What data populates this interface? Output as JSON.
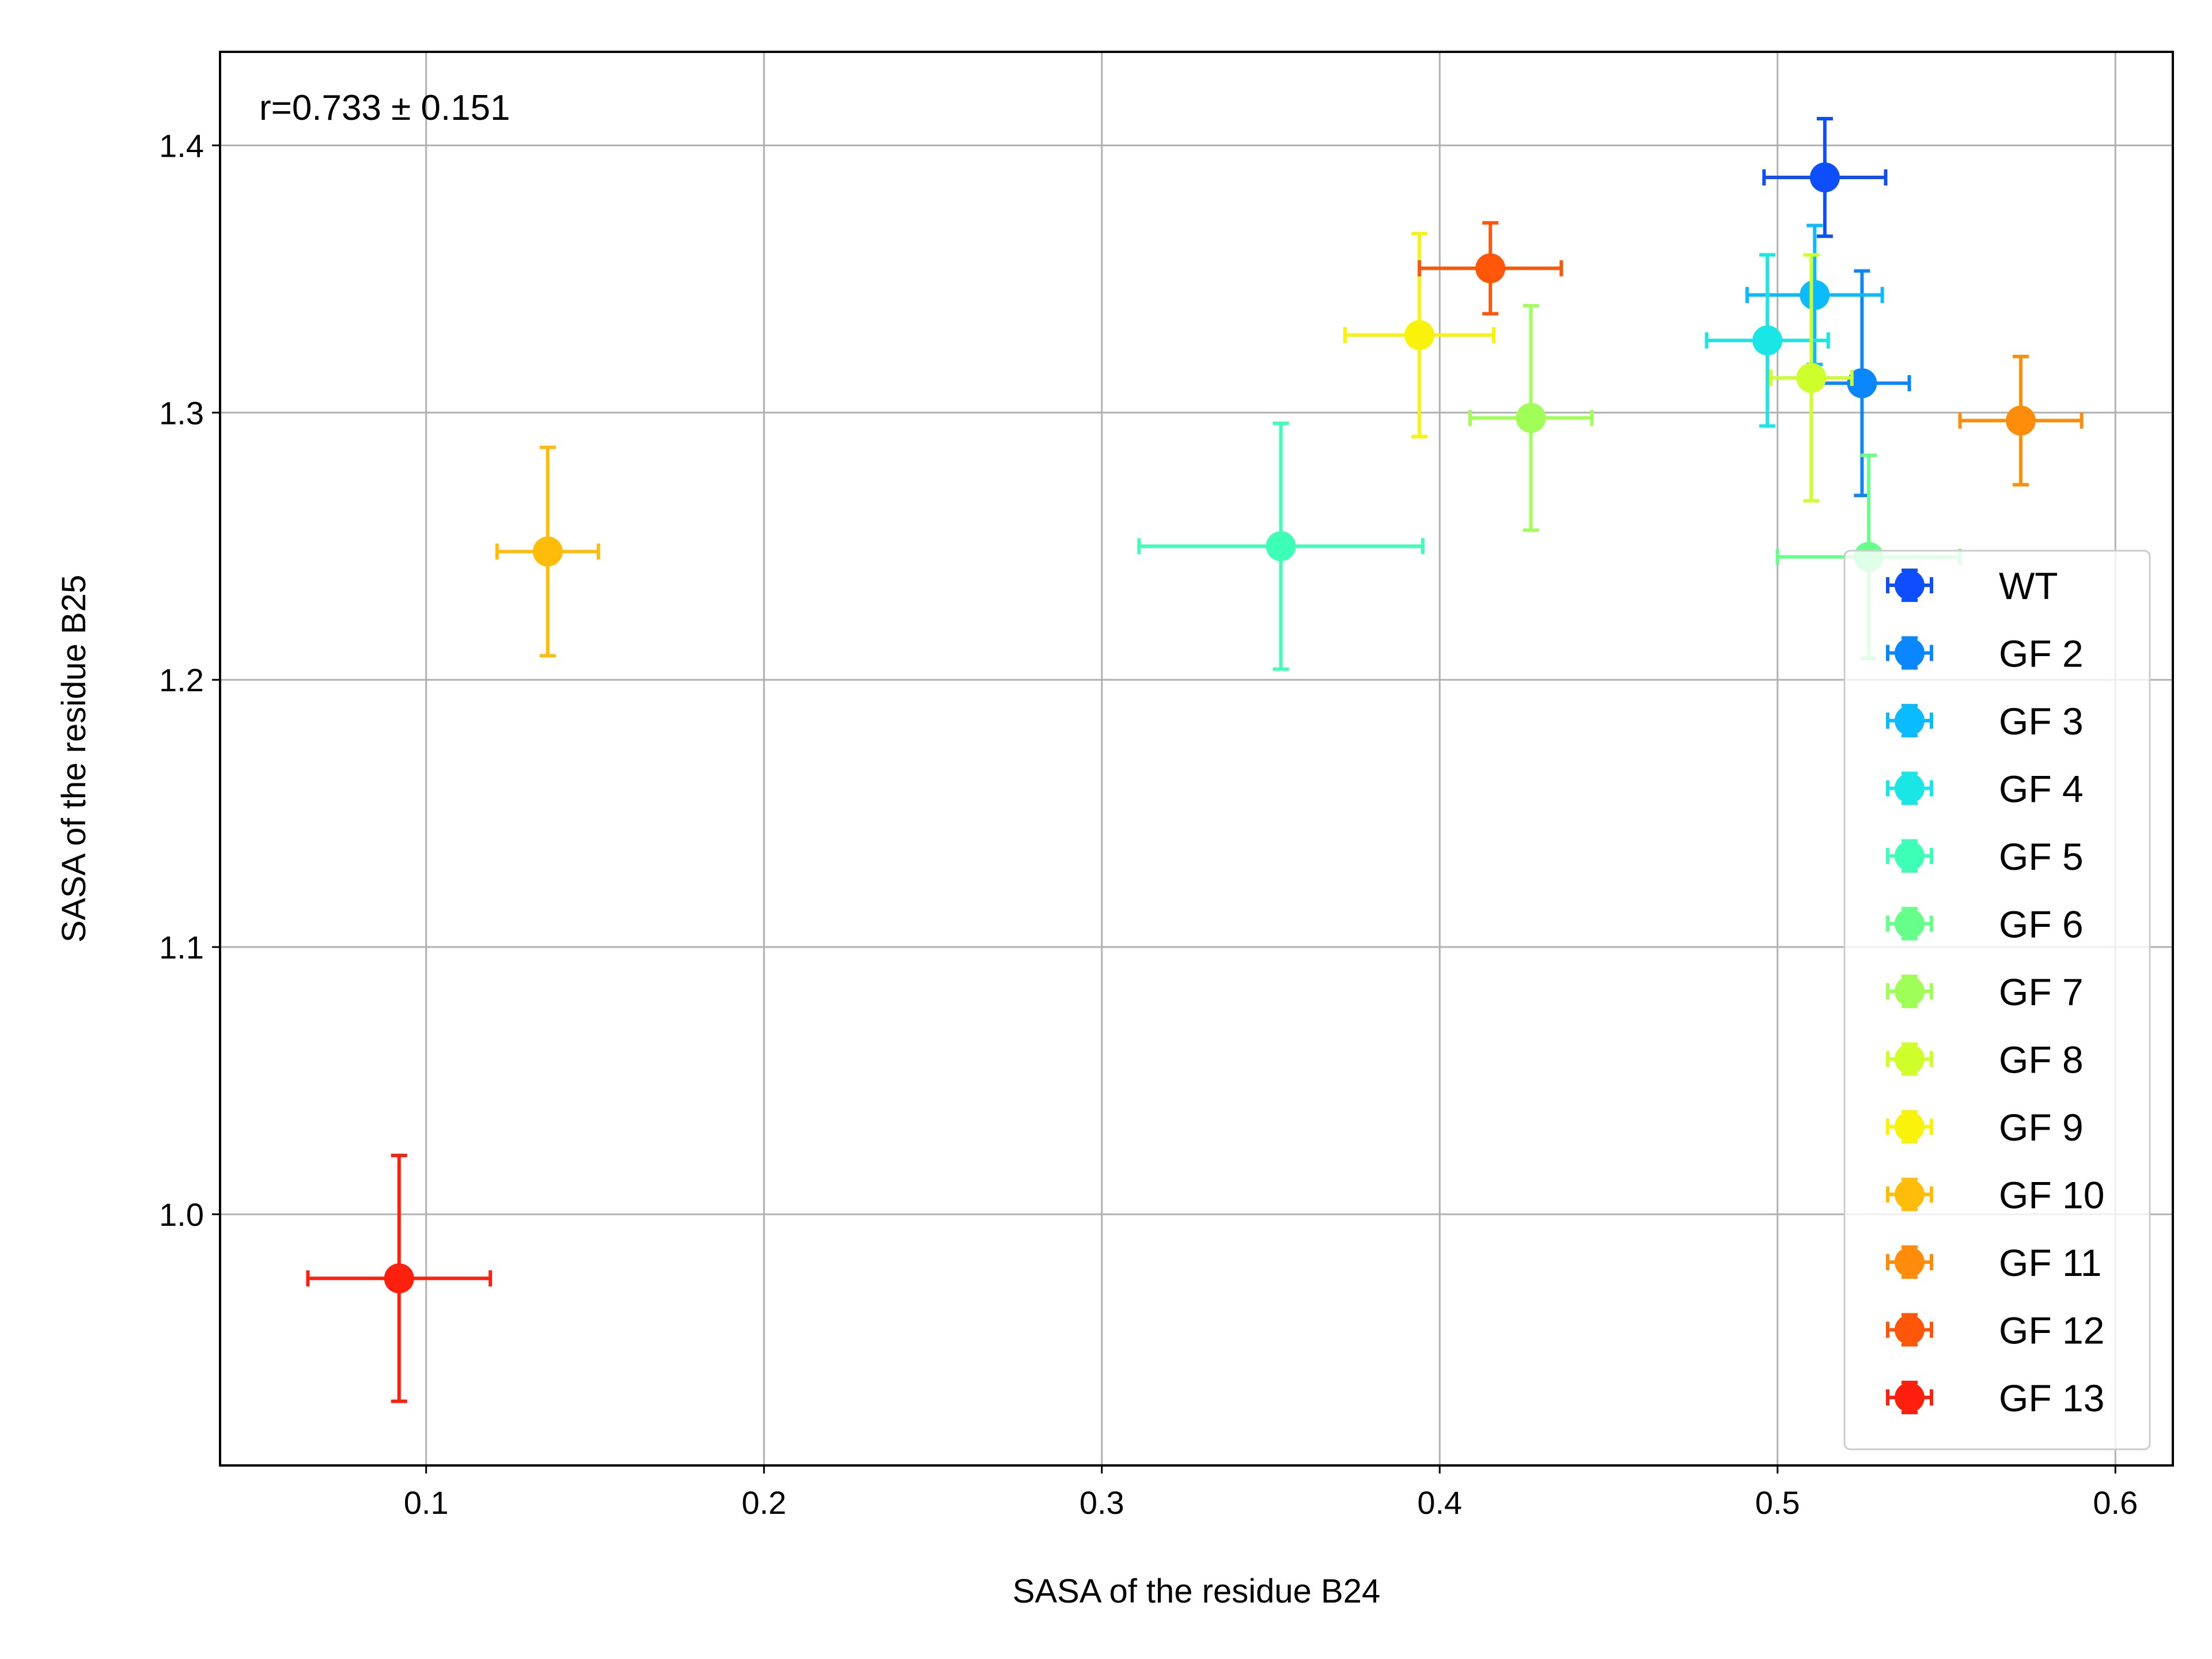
{
  "chart_data": {
    "type": "scatter",
    "xlabel": "SASA of the residue B24",
    "ylabel": "SASA of the residue B25",
    "xlim": [
      0.039,
      0.617
    ],
    "ylim": [
      0.906,
      1.435
    ],
    "xticks": [
      0.1,
      0.2,
      0.3,
      0.4,
      0.5,
      0.6
    ],
    "yticks": [
      1.0,
      1.1,
      1.2,
      1.3,
      1.4
    ],
    "xtick_labels": [
      "0.1",
      "0.2",
      "0.3",
      "0.4",
      "0.5",
      "0.6"
    ],
    "ytick_labels": [
      "1.0",
      "1.1",
      "1.2",
      "1.3",
      "1.4"
    ],
    "grid": true,
    "legend_position": "lower right",
    "annotation": "r=0.733 ± 0.151",
    "series": [
      {
        "name": "WT",
        "color": "#0d4fff",
        "x": 0.514,
        "y": 1.388,
        "xerr": 0.018,
        "yerr": 0.022
      },
      {
        "name": "GF 2",
        "color": "#0a86ff",
        "x": 0.525,
        "y": 1.311,
        "xerr": 0.014,
        "yerr": 0.042
      },
      {
        "name": "GF 3",
        "color": "#0abbff",
        "x": 0.511,
        "y": 1.344,
        "xerr": 0.02,
        "yerr": 0.026
      },
      {
        "name": "GF 4",
        "color": "#1ae6e6",
        "x": 0.497,
        "y": 1.327,
        "xerr": 0.018,
        "yerr": 0.032
      },
      {
        "name": "GF 5",
        "color": "#3dffb5",
        "x": 0.353,
        "y": 1.25,
        "xerr": 0.042,
        "yerr": 0.046
      },
      {
        "name": "GF 6",
        "color": "#66ff8a",
        "x": 0.527,
        "y": 1.246,
        "xerr": 0.027,
        "yerr": 0.038
      },
      {
        "name": "GF 7",
        "color": "#a0ff57",
        "x": 0.427,
        "y": 1.298,
        "xerr": 0.018,
        "yerr": 0.042
      },
      {
        "name": "GF 8",
        "color": "#cfff2a",
        "x": 0.51,
        "y": 1.313,
        "xerr": 0.012,
        "yerr": 0.046
      },
      {
        "name": "GF 9",
        "color": "#f9f20a",
        "x": 0.394,
        "y": 1.329,
        "xerr": 0.022,
        "yerr": 0.038
      },
      {
        "name": "GF 10",
        "color": "#ffbd0a",
        "x": 0.136,
        "y": 1.248,
        "xerr": 0.015,
        "yerr": 0.039
      },
      {
        "name": "GF 11",
        "color": "#ff8c0a",
        "x": 0.572,
        "y": 1.297,
        "xerr": 0.018,
        "yerr": 0.024
      },
      {
        "name": "GF 12",
        "color": "#ff560a",
        "x": 0.415,
        "y": 1.354,
        "xerr": 0.021,
        "yerr": 0.017
      },
      {
        "name": "GF 13",
        "color": "#ff1f0d",
        "x": 0.092,
        "y": 0.976,
        "xerr": 0.027,
        "yerr": 0.046
      }
    ]
  }
}
